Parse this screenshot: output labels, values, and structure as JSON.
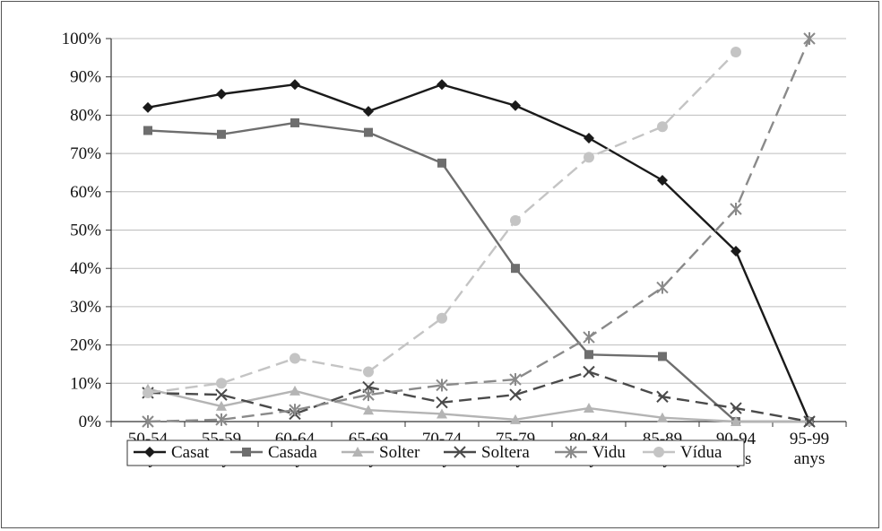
{
  "chart_data": {
    "type": "line",
    "categories": [
      [
        "50-54",
        "anys"
      ],
      [
        "55-59",
        "anys"
      ],
      [
        "60-64",
        "anys"
      ],
      [
        "65-69",
        "anys"
      ],
      [
        "70-74",
        "anys"
      ],
      [
        "75-79",
        "anys"
      ],
      [
        "80-84",
        "anys"
      ],
      [
        "85-89",
        "anys"
      ],
      [
        "90-94",
        "anys"
      ],
      [
        "95-99",
        "anys"
      ]
    ],
    "ylim": [
      0,
      100
    ],
    "yticks": [
      0,
      10,
      20,
      30,
      40,
      50,
      60,
      70,
      80,
      90,
      100
    ],
    "ytick_labels": [
      "0%",
      "10%",
      "20%",
      "30%",
      "40%",
      "50%",
      "60%",
      "70%",
      "80%",
      "90%",
      "100%"
    ],
    "grid": "horizontal",
    "legend_position": "bottom",
    "series": [
      {
        "name": "Casat",
        "color": "#1a1a1a",
        "dash": "solid",
        "marker": "diamond",
        "values": [
          82,
          85.5,
          88,
          81,
          88,
          82.5,
          74,
          63,
          44.5,
          0
        ]
      },
      {
        "name": "Casada",
        "color": "#6e6e6e",
        "dash": "solid",
        "marker": "square",
        "values": [
          76,
          75,
          78,
          75.5,
          67.5,
          40,
          17.5,
          17,
          0,
          0
        ]
      },
      {
        "name": "Solter",
        "color": "#b4b4b4",
        "dash": "solid",
        "marker": "triangle",
        "values": [
          8.5,
          4,
          8,
          3,
          2,
          0.5,
          3.5,
          1,
          0,
          0
        ]
      },
      {
        "name": "Soltera",
        "color": "#4a4a4a",
        "dash": "dashed",
        "marker": "x",
        "values": [
          7.5,
          7,
          2,
          9,
          5,
          7,
          13,
          6.5,
          3.5,
          0
        ]
      },
      {
        "name": "Vidu",
        "color": "#8a8a8a",
        "dash": "dashed",
        "marker": "asterisk",
        "values": [
          0,
          0.5,
          3,
          7,
          9.5,
          11,
          22,
          35,
          55.5,
          100
        ]
      },
      {
        "name": "Vídua",
        "color": "#c4c4c4",
        "dash": "dashed",
        "marker": "circle",
        "values": [
          7.5,
          10,
          16.5,
          13,
          27,
          52.5,
          69,
          77,
          96.5,
          null
        ]
      }
    ]
  }
}
